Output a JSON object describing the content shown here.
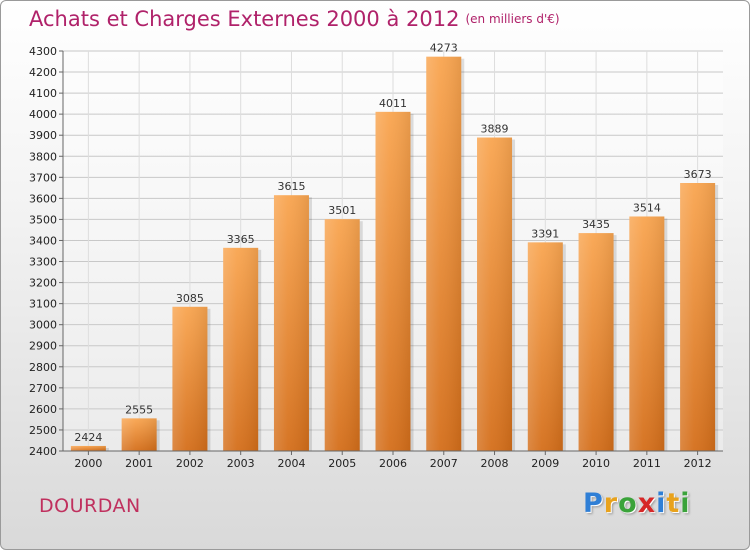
{
  "header": {
    "title": "Achats et Charges Externes 2000 à 2012",
    "unit": "(en milliers d'€)"
  },
  "footer": {
    "city": "DOURDAN",
    "logo_letters": [
      "P",
      "r",
      "o",
      "x",
      "i",
      "t",
      "i"
    ],
    "logo_colors": [
      "#2f7fd6",
      "#e8a21c",
      "#3aa33a",
      "#d62828",
      "#2f7fd6",
      "#e8a21c",
      "#3aa33a"
    ]
  },
  "chart_data": {
    "type": "bar",
    "categories": [
      "2000",
      "2001",
      "2002",
      "2003",
      "2004",
      "2005",
      "2006",
      "2007",
      "2008",
      "2009",
      "2010",
      "2011",
      "2012"
    ],
    "values": [
      2424,
      2555,
      3085,
      3365,
      3615,
      3501,
      4011,
      4273,
      3889,
      3391,
      3435,
      3514,
      3673
    ],
    "title": "Achats et Charges Externes 2000 à 2012",
    "xlabel": "",
    "ylabel": "",
    "ylim": [
      2400,
      4300
    ],
    "yticks": [
      2400,
      2500,
      2600,
      2700,
      2800,
      2900,
      3000,
      3100,
      3200,
      3300,
      3400,
      3500,
      3600,
      3700,
      3800,
      3900,
      4000,
      4100,
      4200,
      4300
    ],
    "grid": true,
    "bar_color": "#f0963c"
  }
}
